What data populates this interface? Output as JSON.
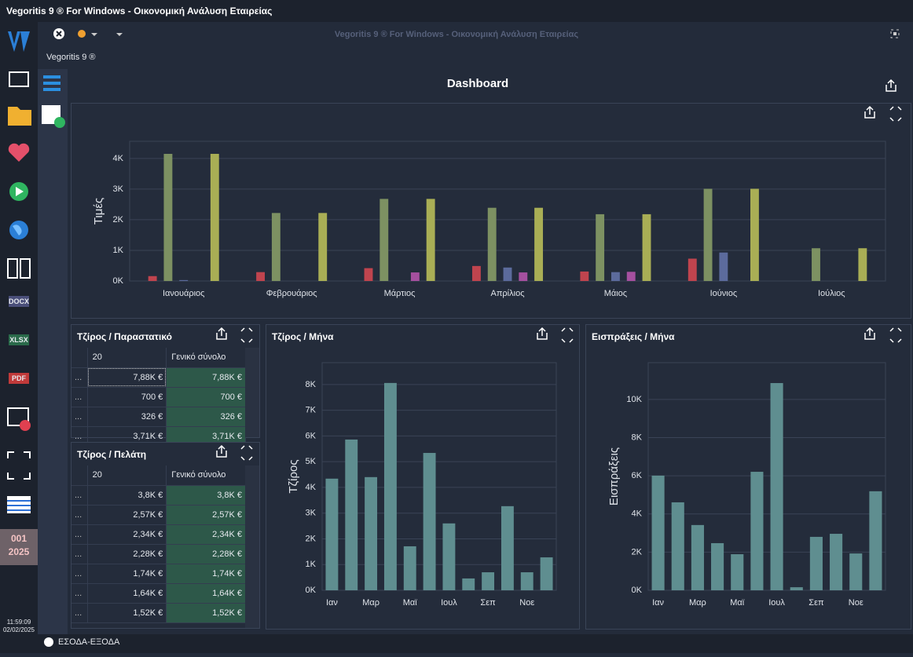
{
  "window": {
    "title": "Vegoritis 9 ® For Windows - Οικονομική Ανάλυση Εταιρείας"
  },
  "toolbar": {
    "title": "Vegoritis 9 ® For Windows - Οικονομική Ανάλυση Εταιρείας",
    "app_label": "Vegoritis 9 ®"
  },
  "sidebar": {
    "icons": [
      "DOCX",
      "XLSX",
      "PDF"
    ],
    "period": "001",
    "year": "2025",
    "time": "11:59:09",
    "date": "02/02/2025"
  },
  "dashboard": {
    "title": "Dashboard"
  },
  "chart_data": [
    {
      "type": "bar",
      "ylabel": "Τιμές",
      "categories": [
        "Ιανουάριος",
        "Φεβρουάριος",
        "Μάρτιος",
        "Απρίλιος",
        "Μάιος",
        "Ιούνιος",
        "Ιούλιος"
      ],
      "series": [
        {
          "color": "#c0444e",
          "values": [
            160,
            290,
            420,
            490,
            310,
            730,
            null
          ]
        },
        {
          "color": "#7d9162",
          "values": [
            4150,
            2220,
            2680,
            2390,
            2180,
            3010,
            1070
          ]
        },
        {
          "color": "#5c6b9c",
          "values": [
            30,
            null,
            null,
            440,
            290,
            930,
            null
          ]
        },
        {
          "color": "#a5509f",
          "values": [
            null,
            null,
            280,
            280,
            300,
            null,
            null
          ]
        },
        {
          "color": "#a9ae55",
          "values": [
            4150,
            2220,
            2680,
            2390,
            2180,
            3010,
            1070
          ]
        }
      ],
      "ylim": [
        0,
        4560
      ],
      "yticks": [
        {
          "value": 0,
          "label": "0K"
        },
        {
          "value": 1000,
          "label": "1K"
        },
        {
          "value": 2000,
          "label": "2K"
        },
        {
          "value": 3000,
          "label": "3K"
        },
        {
          "value": 4000,
          "label": "4K"
        }
      ],
      "grid": true
    },
    {
      "type": "bar",
      "title": "Τζίρος / Μήνα",
      "ylabel": "Τζίρος",
      "categories": [
        "Ιαν",
        null,
        "Μαρ",
        null,
        "Μαϊ",
        null,
        "Ιουλ",
        null,
        "Σεπ",
        null,
        "Νοε",
        null
      ],
      "values": [
        4340,
        5860,
        4400,
        8060,
        1710,
        5340,
        2600,
        460,
        700,
        3270,
        700,
        1280
      ],
      "color": "#5f8e90",
      "ylim": [
        0,
        8850
      ],
      "yticks": [
        {
          "value": 0,
          "label": "0K"
        },
        {
          "value": 1000,
          "label": "1K"
        },
        {
          "value": 2000,
          "label": "2K"
        },
        {
          "value": 3000,
          "label": "3K"
        },
        {
          "value": 4000,
          "label": "4K"
        },
        {
          "value": 5000,
          "label": "5K"
        },
        {
          "value": 6000,
          "label": "6K"
        },
        {
          "value": 7000,
          "label": "7K"
        },
        {
          "value": 8000,
          "label": "8K"
        }
      ],
      "grid": true
    },
    {
      "type": "bar",
      "title": "Εισπράξεις / Μήνα",
      "ylabel": "Εισπράξεις",
      "categories": [
        "Ιαν",
        null,
        "Μαρ",
        null,
        "Μαϊ",
        null,
        "Ιουλ",
        null,
        "Σεπ",
        null,
        "Νοε",
        null
      ],
      "values": [
        6010,
        4610,
        3420,
        2470,
        1890,
        6210,
        10860,
        160,
        2800,
        2960,
        1930,
        5190
      ],
      "color": "#5f8e90",
      "ylim": [
        0,
        11930
      ],
      "yticks": [
        {
          "value": 0,
          "label": "0K"
        },
        {
          "value": 2000,
          "label": "2K"
        },
        {
          "value": 4000,
          "label": "4K"
        },
        {
          "value": 6000,
          "label": "6K"
        },
        {
          "value": 8000,
          "label": "8K"
        },
        {
          "value": 10000,
          "label": "10K"
        }
      ],
      "grid": true
    }
  ],
  "tables": [
    {
      "title": "Τζίρος / Παραστατικό",
      "columns": [
        "20",
        "Γενικό σύνολο"
      ],
      "rows": [
        [
          "...",
          "7,88K €",
          "7,88K €"
        ],
        [
          "...",
          "700 €",
          "700 €"
        ],
        [
          "...",
          "326 €",
          "326 €"
        ],
        [
          "...",
          "3,71K €",
          "3,71K €"
        ]
      ]
    },
    {
      "title": "Τζίρος / Πελάτη",
      "columns": [
        "20",
        "Γενικό σύνολο"
      ],
      "rows": [
        [
          "...",
          "3,8K €",
          "3,8K €"
        ],
        [
          "...",
          "2,57K €",
          "2,57K €"
        ],
        [
          "...",
          "2,34K €",
          "2,34K €"
        ],
        [
          "...",
          "2,28K €",
          "2,28K €"
        ],
        [
          "...",
          "1,74K €",
          "1,74K €"
        ],
        [
          "...",
          "1,64K €",
          "1,64K €"
        ],
        [
          "...",
          "1,52K €",
          "1,52K €"
        ]
      ]
    }
  ],
  "status": {
    "text": "ΕΣΟΔΑ-ΕΞΟΔΑ"
  }
}
